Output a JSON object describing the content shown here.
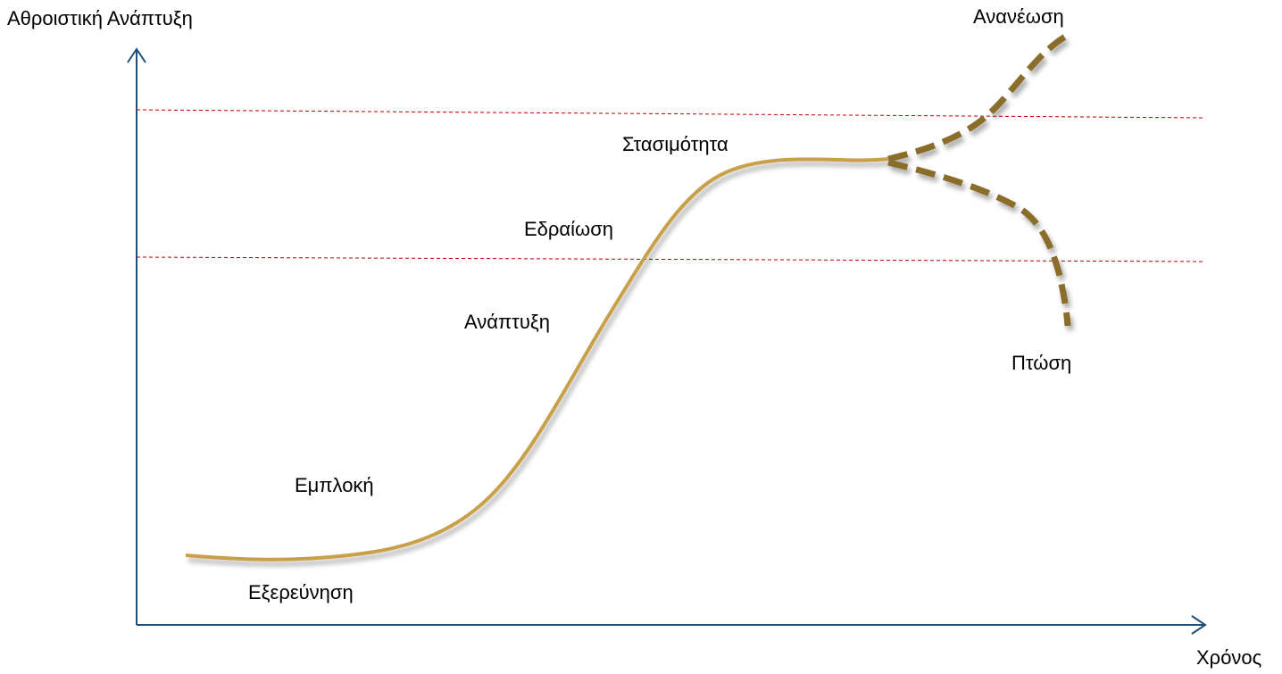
{
  "axes": {
    "y_label": "Αθροιστική Ανάπτυξη",
    "x_label": "Χρόνος"
  },
  "stages": [
    "Εξερεύνηση",
    "Εμπλοκή",
    "Ανάπτυξη",
    "Εδραίωση",
    "Στασιμότητα",
    "Ανανέωση",
    "Πτώση"
  ]
}
